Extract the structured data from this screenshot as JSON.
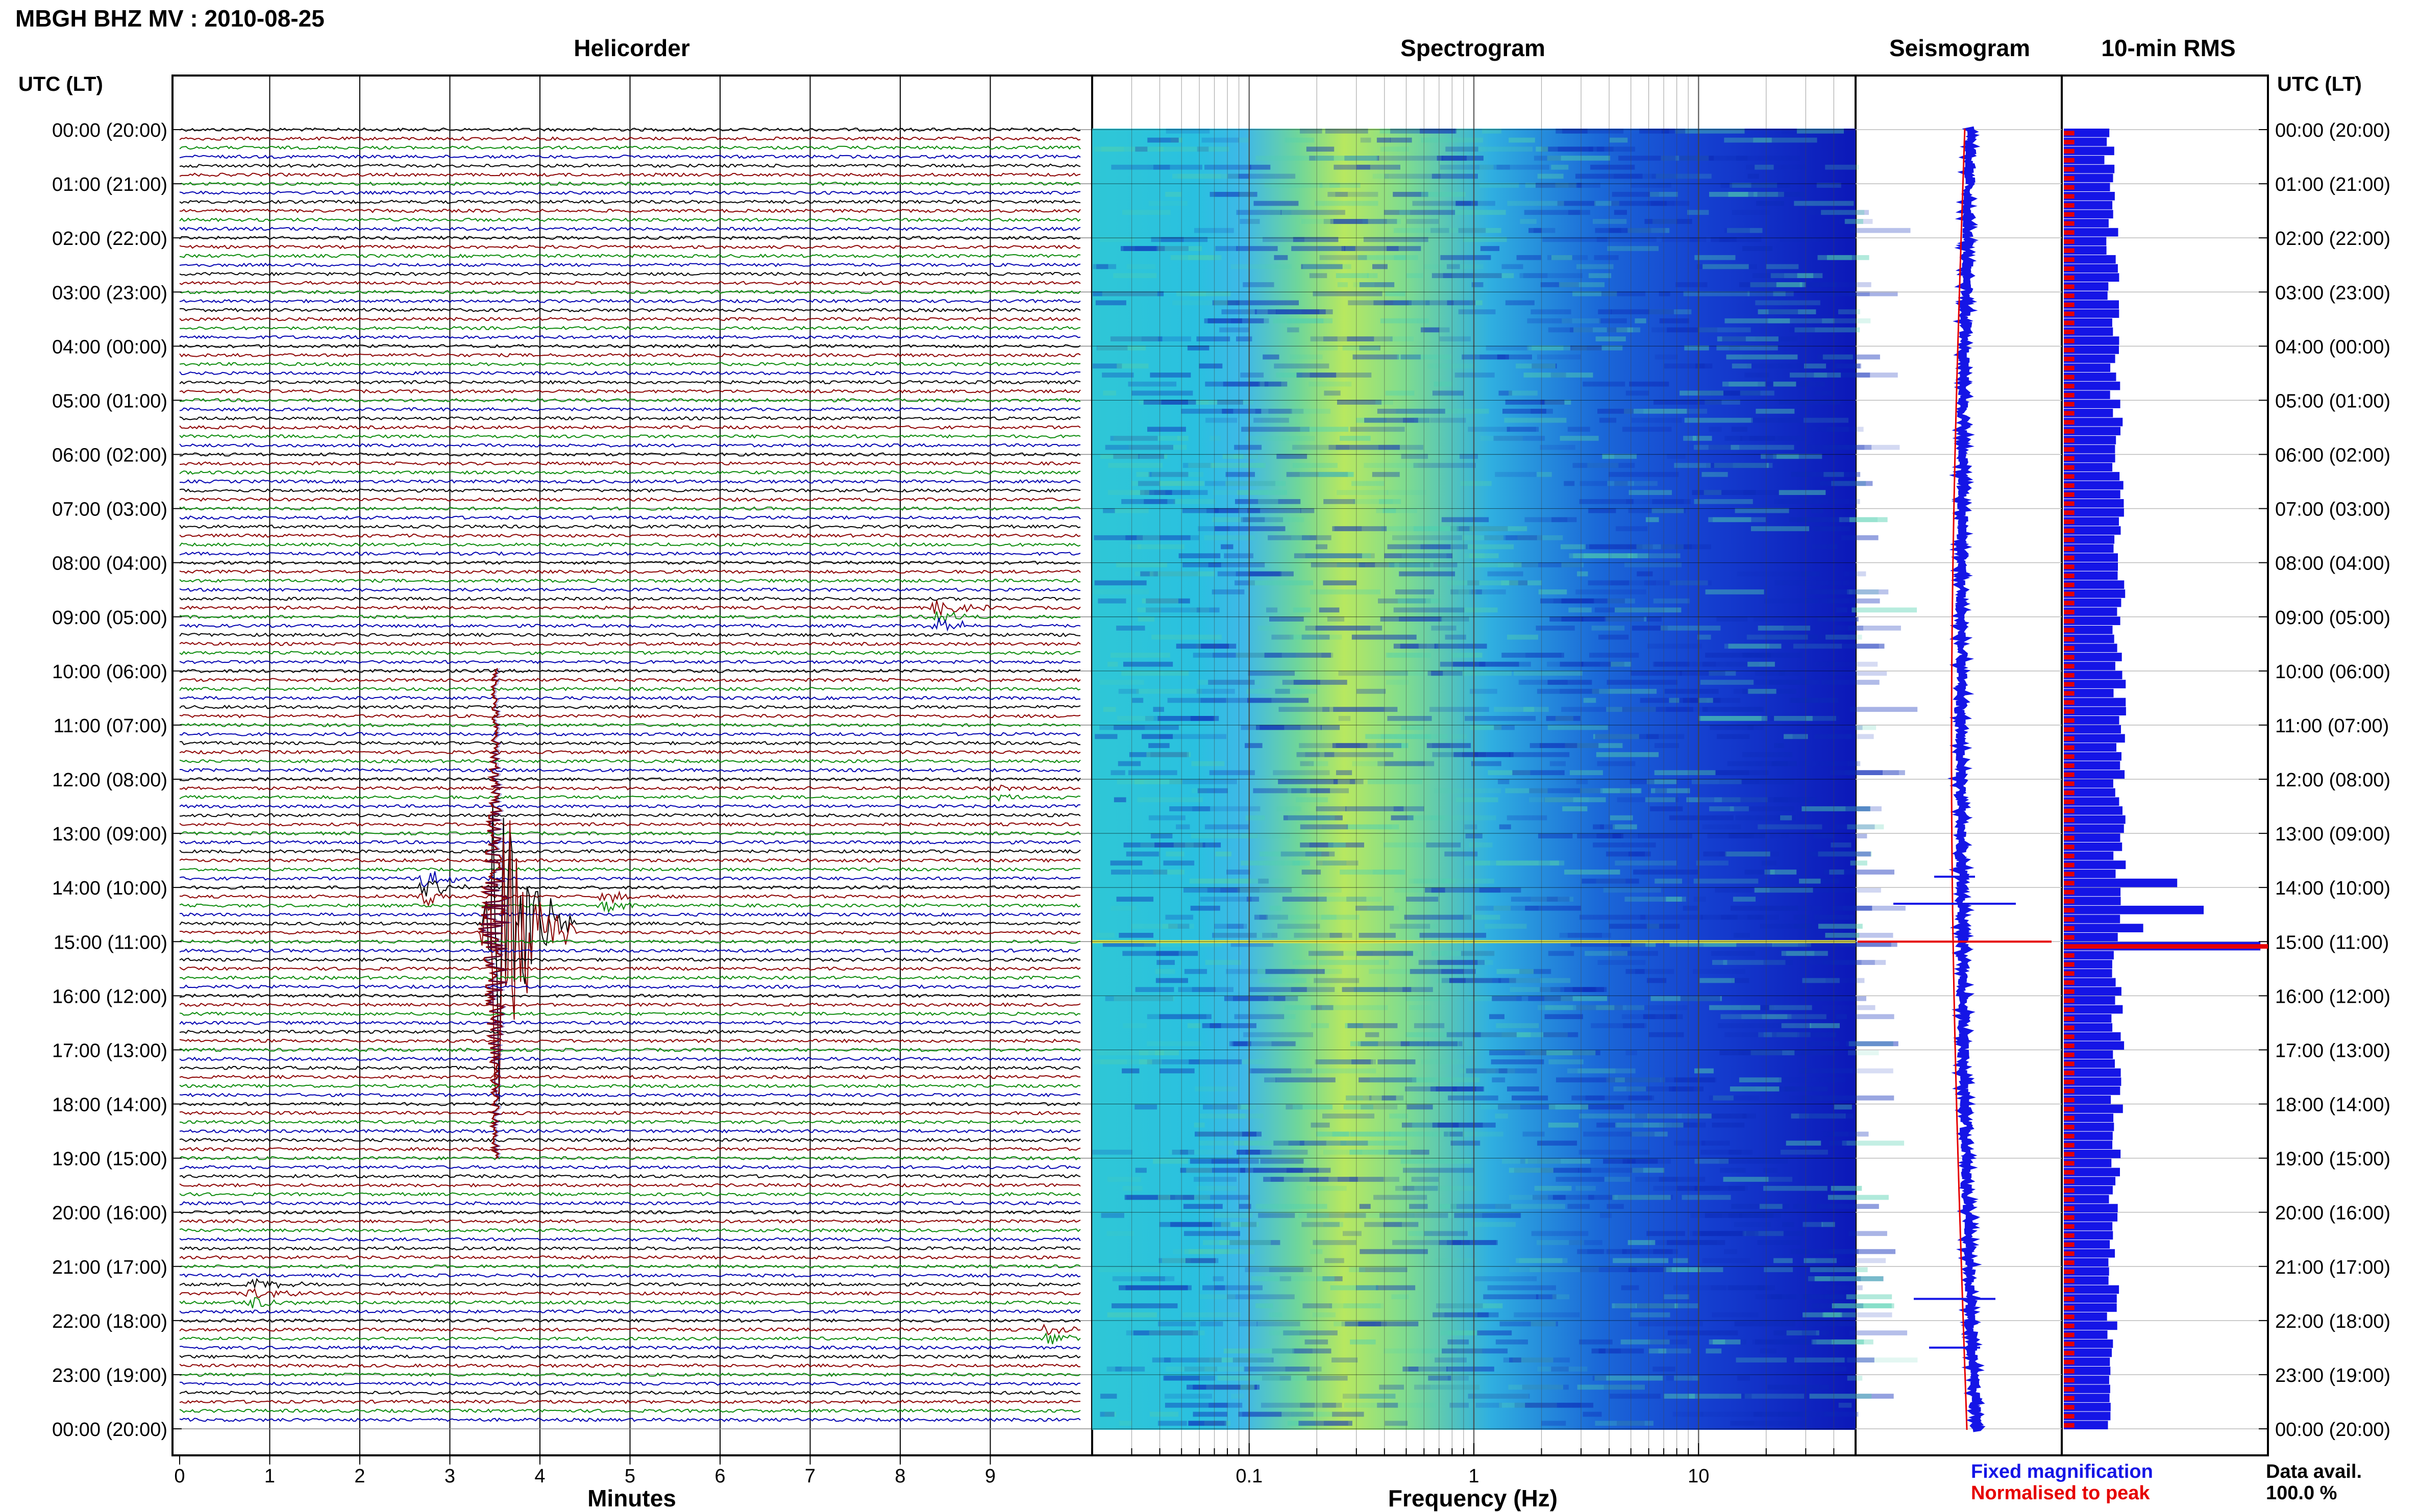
{
  "header": {
    "station_title": "MBGH BHZ MV : 2010-08-25",
    "utc_label_left": "UTC (LT)",
    "utc_label_right": "UTC (LT)"
  },
  "panels": {
    "helicorder_title": "Helicorder",
    "spectrogram_title": "Spectrogram",
    "seismogram_title": "Seismogram",
    "rms_title": "10-min RMS"
  },
  "chart_data": [
    {
      "type": "line",
      "title": "Helicorder",
      "xlabel": "Minutes",
      "ylabel": "UTC (LT)",
      "xlim": [
        0,
        10
      ],
      "x_ticks": [
        "0",
        "1",
        "2",
        "3",
        "4",
        "5",
        "6",
        "7",
        "8",
        "9"
      ],
      "y_ticks": [
        "00:00 (20:00)",
        "01:00 (21:00)",
        "02:00 (22:00)",
        "03:00 (23:00)",
        "04:00 (00:00)",
        "05:00 (01:00)",
        "06:00 (02:00)",
        "07:00 (03:00)",
        "08:00 (04:00)",
        "09:00 (05:00)",
        "10:00 (06:00)",
        "11:00 (07:00)",
        "12:00 (08:00)",
        "13:00 (09:00)",
        "14:00 (10:00)",
        "15:00 (11:00)",
        "16:00 (12:00)",
        "17:00 (13:00)",
        "18:00 (14:00)",
        "19:00 (15:00)",
        "20:00 (16:00)",
        "21:00 (17:00)",
        "22:00 (18:00)",
        "23:00 (19:00)",
        "00:00 (20:00)"
      ],
      "trace_colors": [
        "#000000",
        "#8b0000",
        "#0a8a0a",
        "#0000b0"
      ],
      "rows_per_hour": 6,
      "events": [
        {
          "hour": 9.0,
          "minute": 8.4,
          "amplitude": 2.5
        },
        {
          "hour": 12.3,
          "minute": 9.1,
          "amplitude": 1.2
        },
        {
          "hour": 14.0,
          "minute": 2.7,
          "amplitude": 3.0
        },
        {
          "hour": 14.3,
          "minute": 4.7,
          "amplitude": 1.8
        },
        {
          "hour": 14.75,
          "minute": 3.5,
          "amplitude": 60
        },
        {
          "hour": 21.5,
          "minute": 0.8,
          "amplitude": 2.2
        },
        {
          "hour": 22.3,
          "minute": 9.6,
          "amplitude": 2.0
        }
      ]
    },
    {
      "type": "heatmap",
      "title": "Spectrogram",
      "xlabel": "Frequency (Hz)",
      "x_scale": "log",
      "xlim": [
        0.02,
        50
      ],
      "x_ticks": [
        "0.1",
        "1",
        "10"
      ],
      "colormap": [
        "#1020c8",
        "#1060e0",
        "#10a8e8",
        "#38d8c8",
        "#90e880",
        "#e8e840"
      ],
      "peak_frequency_hz": 0.3,
      "event_hour": 15.0
    },
    {
      "type": "line",
      "title": "Seismogram",
      "legend": [
        "Fixed magnification",
        "Normalised to peak"
      ],
      "series_colors": [
        "#1515e6",
        "#e60000"
      ]
    },
    {
      "type": "bar",
      "title": "10-min RMS",
      "orientation": "horizontal",
      "series_colors": [
        "#1515e6",
        "#e60000"
      ],
      "spikes": [
        {
          "hour": 13.8,
          "value": 3.0
        },
        {
          "hour": 14.3,
          "value": 3.7
        },
        {
          "hour": 14.6,
          "value": 2.1
        },
        {
          "hour": 15.0,
          "value": 5.2
        },
        {
          "hour": 21.6,
          "value": 1.4
        },
        {
          "hour": 22.4,
          "value": 1.3
        }
      ],
      "footer_label": "Data avail.",
      "footer_value": "100.0 %"
    }
  ]
}
